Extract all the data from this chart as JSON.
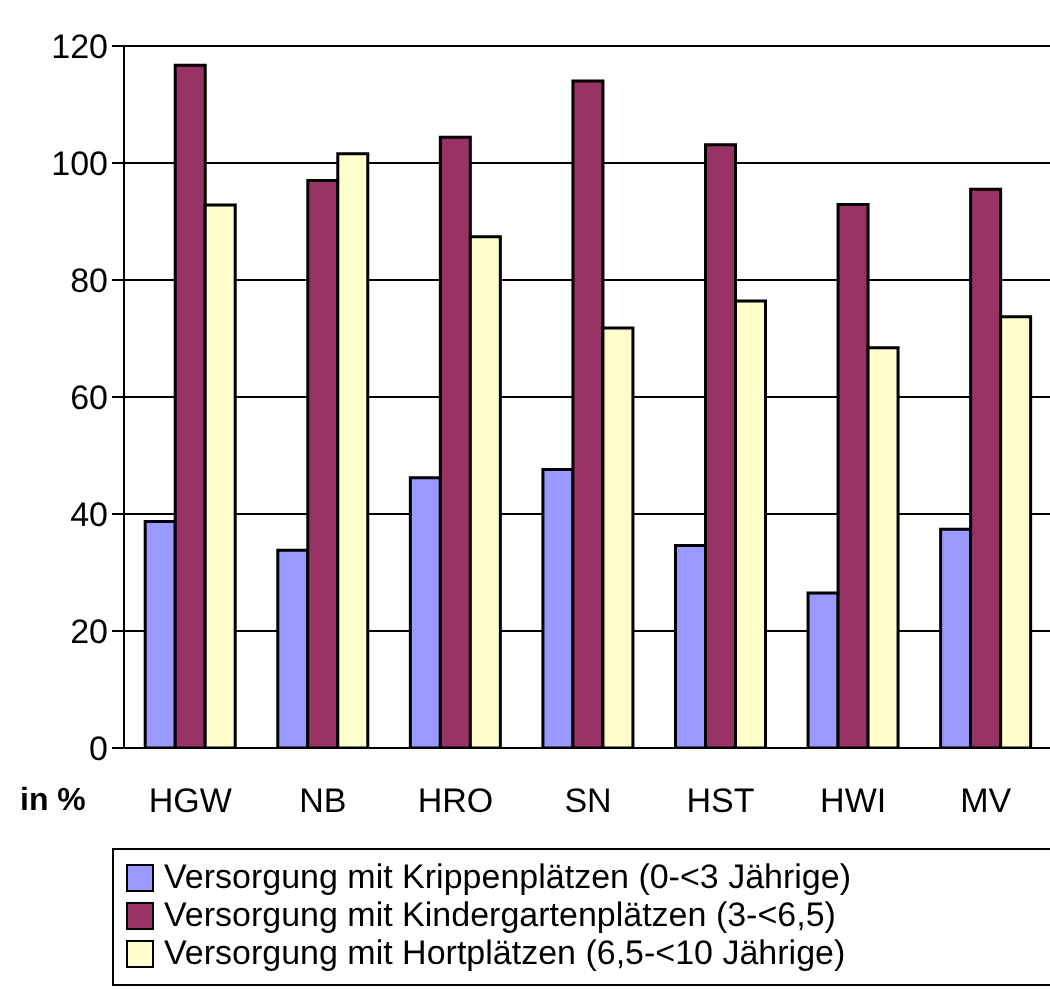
{
  "chart_data": {
    "type": "bar",
    "ylabel": "in %",
    "categories": [
      "HGW",
      "NB",
      "HRO",
      "SN",
      "HST",
      "HWI",
      "MV"
    ],
    "series": [
      {
        "name": "Versorgung mit Krippenplätzen (0-<3 Jährige)",
        "color": "#9999ff",
        "values": [
          38.7,
          33.8,
          46.2,
          47.6,
          34.6,
          26.5,
          37.4
        ]
      },
      {
        "name": "Versorgung mit Kindergartenplätzen (3-<6,5)",
        "color": "#993366",
        "values": [
          116.7,
          97.0,
          104.4,
          114.0,
          103.1,
          92.9,
          95.5
        ]
      },
      {
        "name": "Versorgung mit Hortplätzen (6,5-<10 Jährige)",
        "color": "#ffffcc",
        "values": [
          92.8,
          101.6,
          87.4,
          71.8,
          76.4,
          68.4,
          73.7
        ]
      }
    ],
    "ylim": [
      0,
      120
    ],
    "yticks": [
      0,
      20,
      40,
      60,
      80,
      100,
      120
    ],
    "grid": "y",
    "legend": "bottom"
  }
}
